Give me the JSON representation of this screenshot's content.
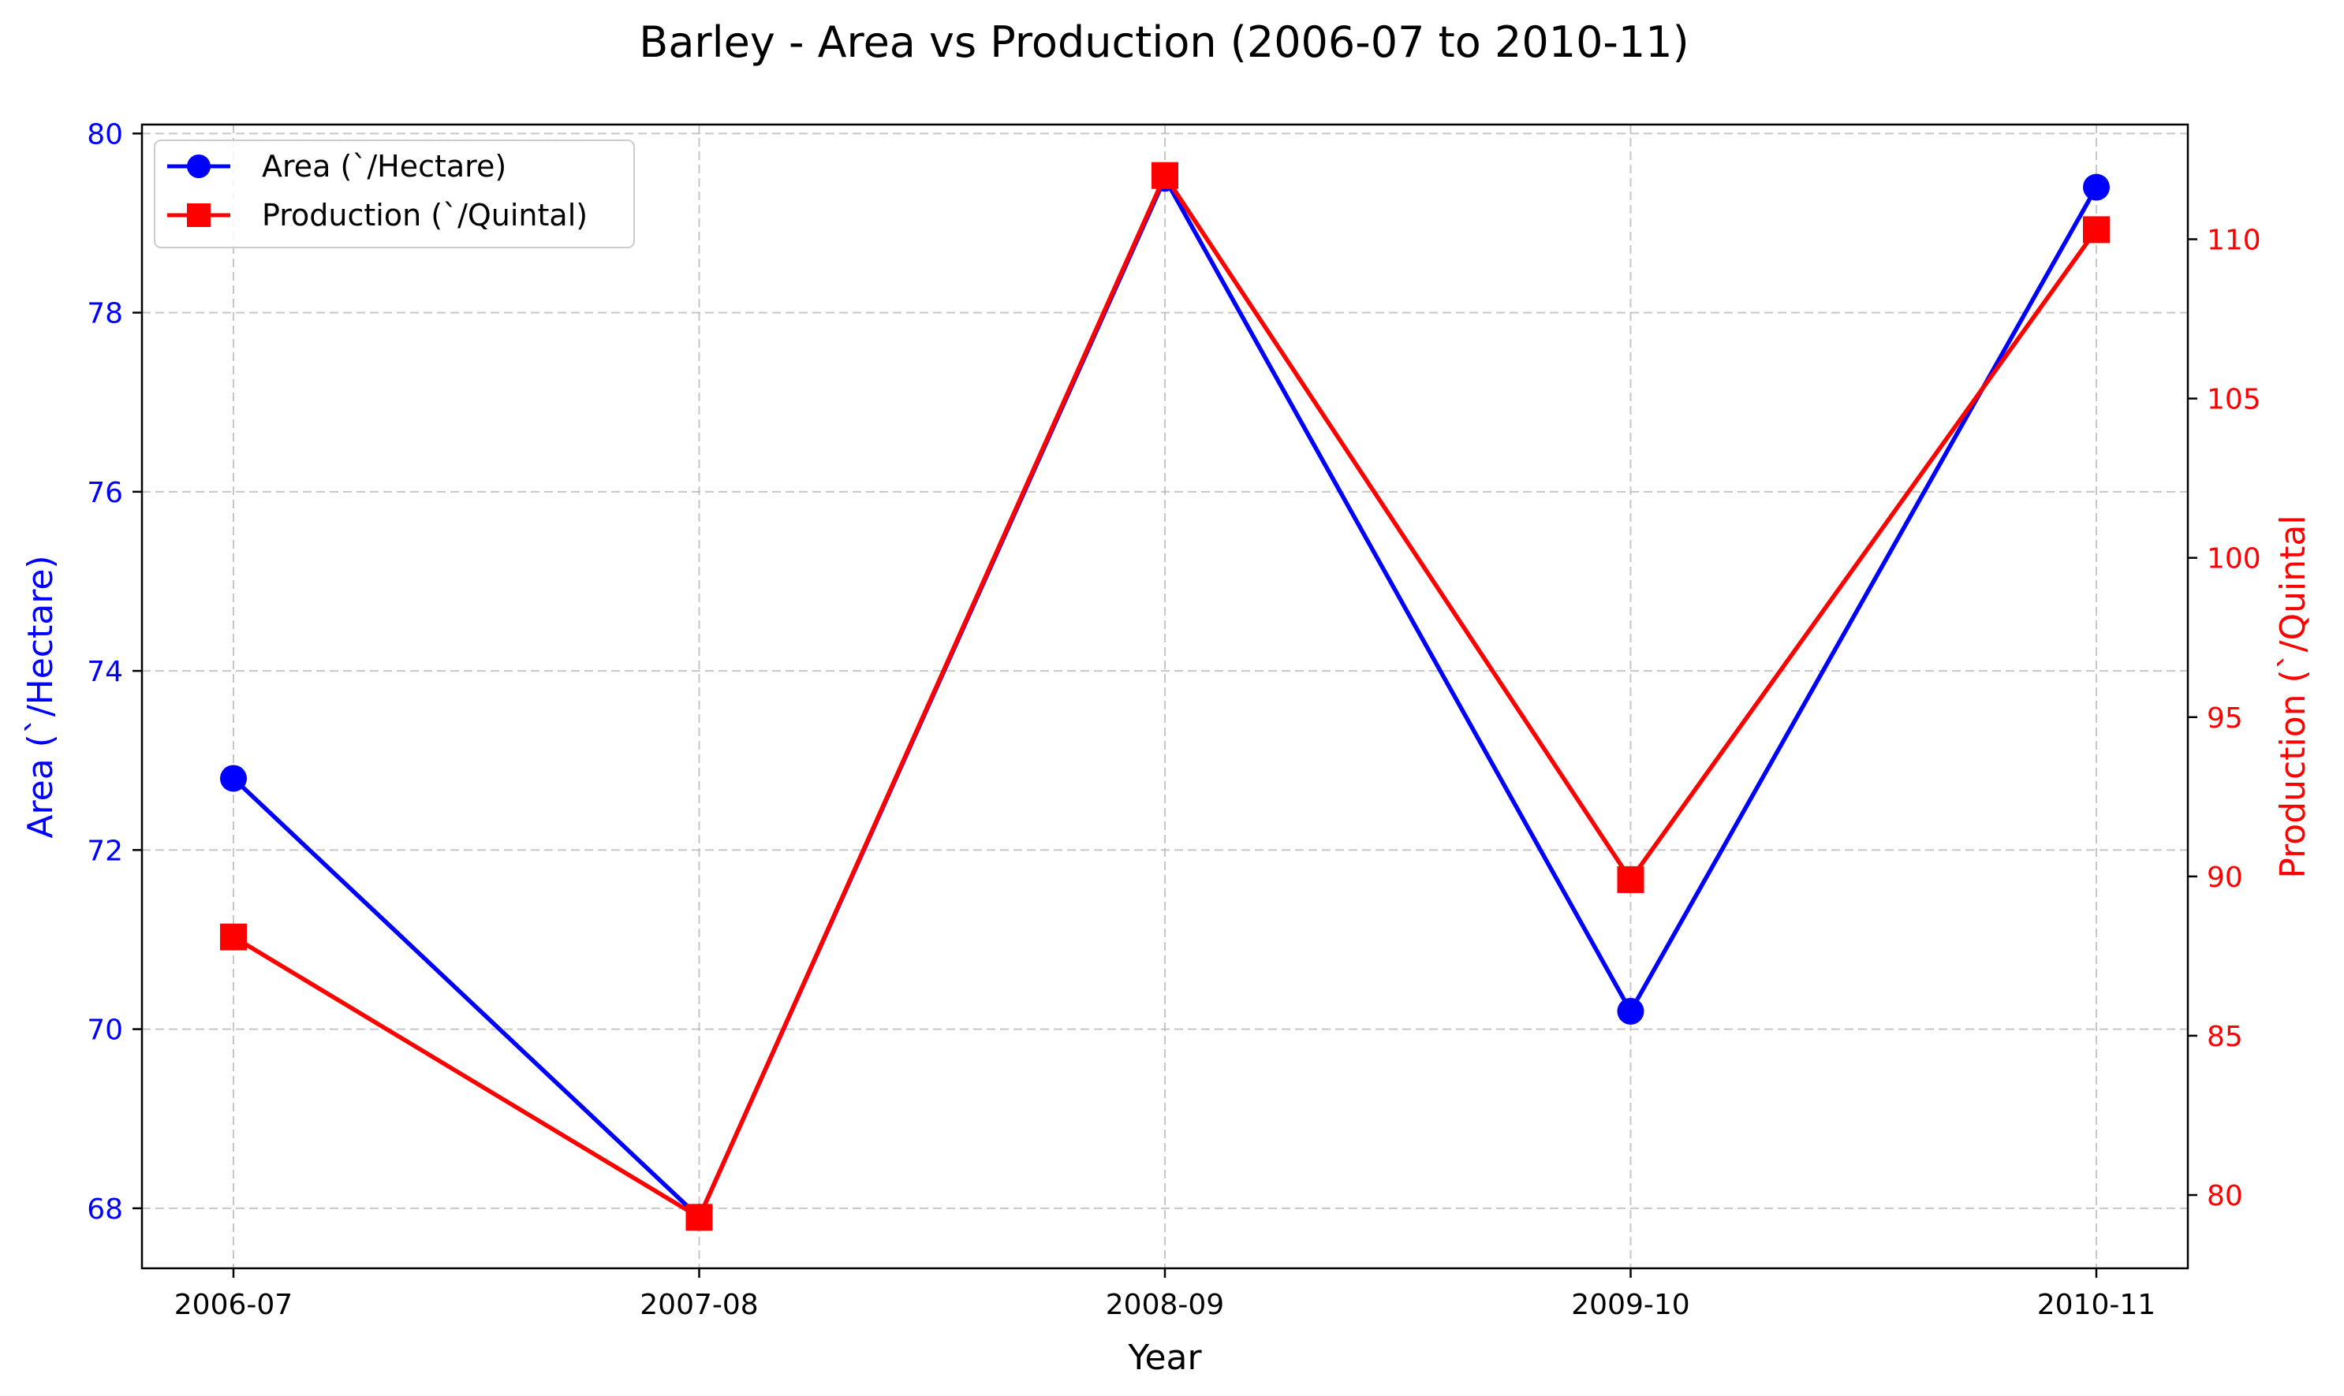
{
  "chart_data": {
    "type": "line",
    "title": "Barley - Area vs Production (2006-07 to 2010-11)",
    "xlabel": "Year",
    "categories": [
      "2006-07",
      "2007-08",
      "2008-09",
      "2009-10",
      "2010-11"
    ],
    "grid": true,
    "legend_position": "top-left",
    "series": [
      {
        "name": "Area (`/Hectare)",
        "axis": "left",
        "color": "#0000ff",
        "marker": "circle",
        "values": [
          72.8,
          67.9,
          79.5,
          70.2,
          79.4
        ]
      },
      {
        "name": "Production (`/Quintal)",
        "axis": "right",
        "color": "#ff0000",
        "marker": "square",
        "values": [
          88.1,
          79.3,
          112.0,
          89.9,
          110.3
        ]
      }
    ],
    "y_left": {
      "label": "Area (`/Hectare)",
      "color": "#0000ff",
      "range": [
        67.33,
        80.1
      ],
      "ticks": [
        68,
        70,
        72,
        74,
        76,
        78,
        80
      ]
    },
    "y_right": {
      "label": "Production (`/Quintal",
      "color": "#ff0000",
      "range": [
        77.7,
        113.6
      ],
      "ticks": [
        80,
        85,
        90,
        95,
        100,
        105,
        110
      ]
    }
  }
}
